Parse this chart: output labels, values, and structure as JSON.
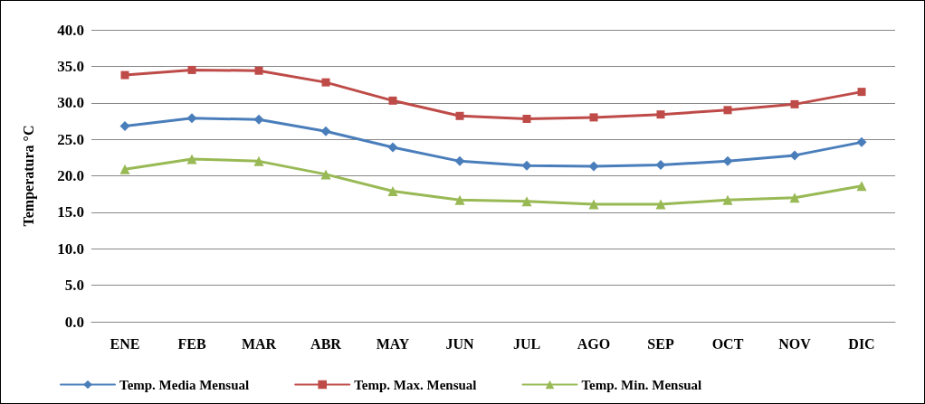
{
  "chart_data": {
    "type": "line",
    "ylabel": "Temperatura °C",
    "categories": [
      "ENE",
      "FEB",
      "MAR",
      "ABR",
      "MAY",
      "JUN",
      "JUL",
      "AGO",
      "SEP",
      "OCT",
      "NOV",
      "DIC"
    ],
    "series": [
      {
        "name": "Temp. Media Mensual",
        "color": "#4a7ebb",
        "marker": "diamond",
        "values": [
          26.8,
          27.9,
          27.7,
          26.1,
          23.9,
          22.0,
          21.4,
          21.3,
          21.5,
          22.0,
          22.8,
          24.6
        ]
      },
      {
        "name": "Temp. Max. Mensual",
        "color": "#be4b48",
        "marker": "square",
        "values": [
          33.8,
          34.5,
          34.4,
          32.8,
          30.3,
          28.2,
          27.8,
          28.0,
          28.4,
          29.0,
          29.8,
          31.5
        ]
      },
      {
        "name": "Temp. Min. Mensual",
        "color": "#98b954",
        "marker": "triangle",
        "values": [
          20.9,
          22.3,
          22.0,
          20.2,
          17.9,
          16.7,
          16.5,
          16.1,
          16.1,
          16.7,
          17.0,
          18.6
        ]
      }
    ],
    "ylim": [
      0,
      40
    ],
    "yticks": [
      {
        "value": 0,
        "label": "0.0"
      },
      {
        "value": 5,
        "label": "5.0"
      },
      {
        "value": 10,
        "label": "10.0"
      },
      {
        "value": 15,
        "label": "15.0"
      },
      {
        "value": 20,
        "label": "20.0"
      },
      {
        "value": 25,
        "label": "25.0"
      },
      {
        "value": 30,
        "label": "30.0"
      },
      {
        "value": 35,
        "label": "35.0"
      },
      {
        "value": 40,
        "label": "40.0"
      }
    ],
    "grid": "y",
    "legend": "bottom",
    "line_style": "solid"
  }
}
